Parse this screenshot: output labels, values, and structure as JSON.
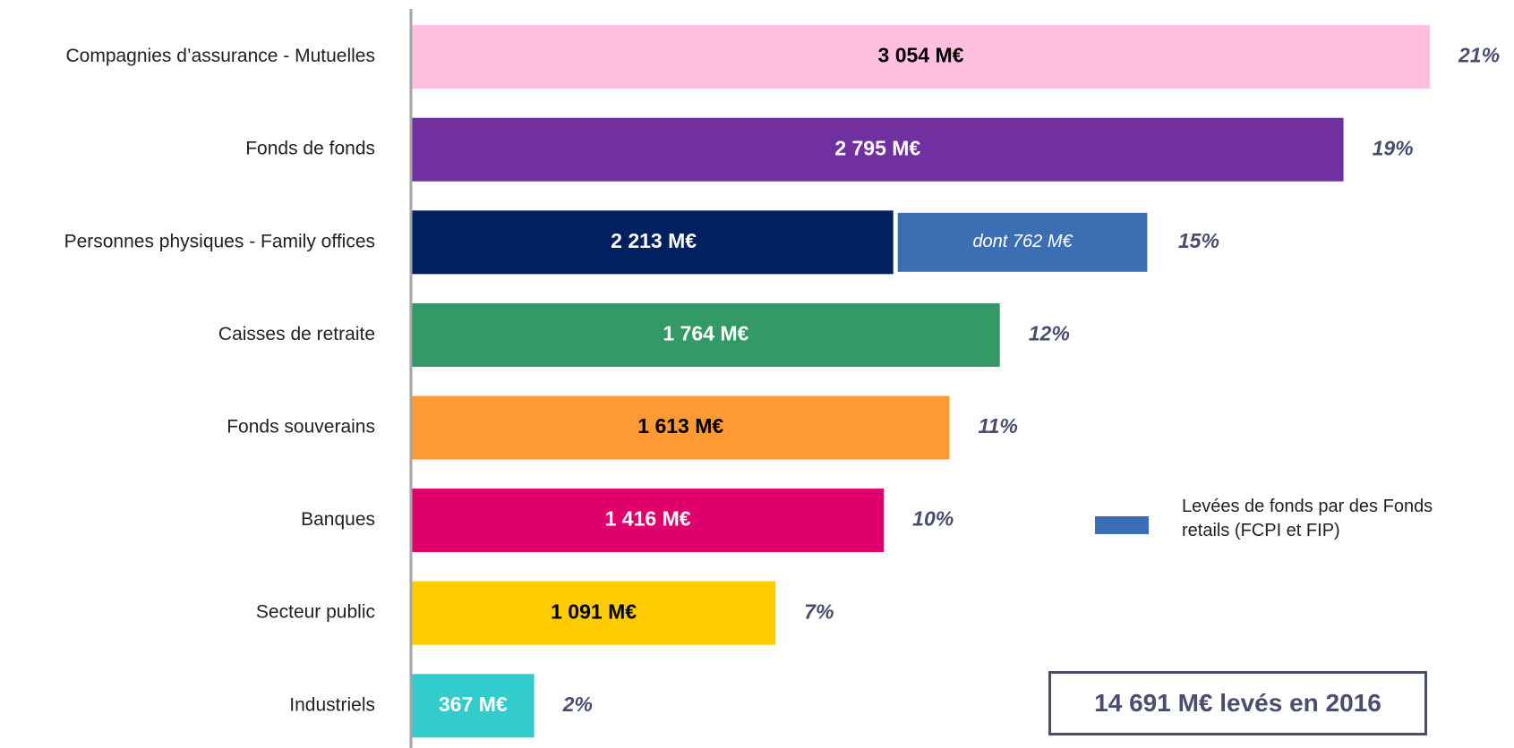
{
  "chart_data": {
    "type": "bar",
    "orientation": "horizontal",
    "categories": [
      "Compagnies d’assurance  -  Mutuelles",
      "Fonds de fonds",
      "Personnes physiques  -  Family offices",
      "Caisses de retraite",
      "Fonds souverains",
      "Banques",
      "Secteur public",
      "Industriels"
    ],
    "values": [
      3054,
      2795,
      2213,
      1764,
      1613,
      1416,
      1091,
      367
    ],
    "value_labels": [
      "3 054 M€",
      "2 795 M€",
      "2 213 M€",
      "1 764 M€",
      "1 613 M€",
      "1 416 M€",
      "1 091 M€",
      "367 M€"
    ],
    "colors": [
      "#ffbfe0",
      "#7030a0",
      "#002060",
      "#339966",
      "#ff9933",
      "#e0006c",
      "#ffcc00",
      "#33cccc"
    ],
    "value_label_colors": [
      "#000000",
      "#ffffff",
      "#ffffff",
      "#ffffff",
      "#000000",
      "#ffffff",
      "#000000",
      "#ffffff"
    ],
    "shares": [
      21,
      19,
      15,
      12,
      11,
      10,
      7,
      2
    ],
    "share_labels": [
      "21%",
      "19%",
      "15%",
      "12%",
      "11%",
      "10%",
      "7%",
      "2%"
    ],
    "retail": {
      "name": "Levées de fonds par des Fonds retails (FCPI et FIP)",
      "color": "#3c6eb4",
      "values": [
        null,
        null,
        762,
        null,
        null,
        null,
        null,
        null
      ],
      "value_labels": [
        null,
        null,
        "dont 762 M€",
        null,
        null,
        null,
        null,
        null
      ]
    },
    "annotation": "14 691 M€ levés en 2016"
  }
}
